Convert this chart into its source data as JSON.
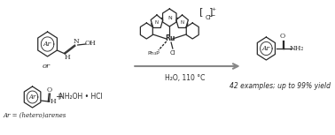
{
  "bg_color": "#ffffff",
  "fig_width": 3.78,
  "fig_height": 1.53,
  "dpi": 100,
  "line_color": "#2a2a2a",
  "gray_color": "#888888",
  "subtitle": "42 examples; up to 99% yield",
  "condition_text": "H₂O, 110 °C",
  "or_text": "or",
  "reagent_text": "NH₂OH • HCl",
  "plus_text": "+",
  "ar_eq_text": "Ar = (hetero)arenes",
  "nh2_text": "NH₂",
  "oh_text": "OH",
  "h_text": "H",
  "n_text": "N",
  "o_text": "O",
  "pph3_text": "Ph₃P",
  "cl_text": "Cl",
  "ru_text": "Ru",
  "charge_plus": "+",
  "charge_minus": "−",
  "ar_text": "Ar"
}
